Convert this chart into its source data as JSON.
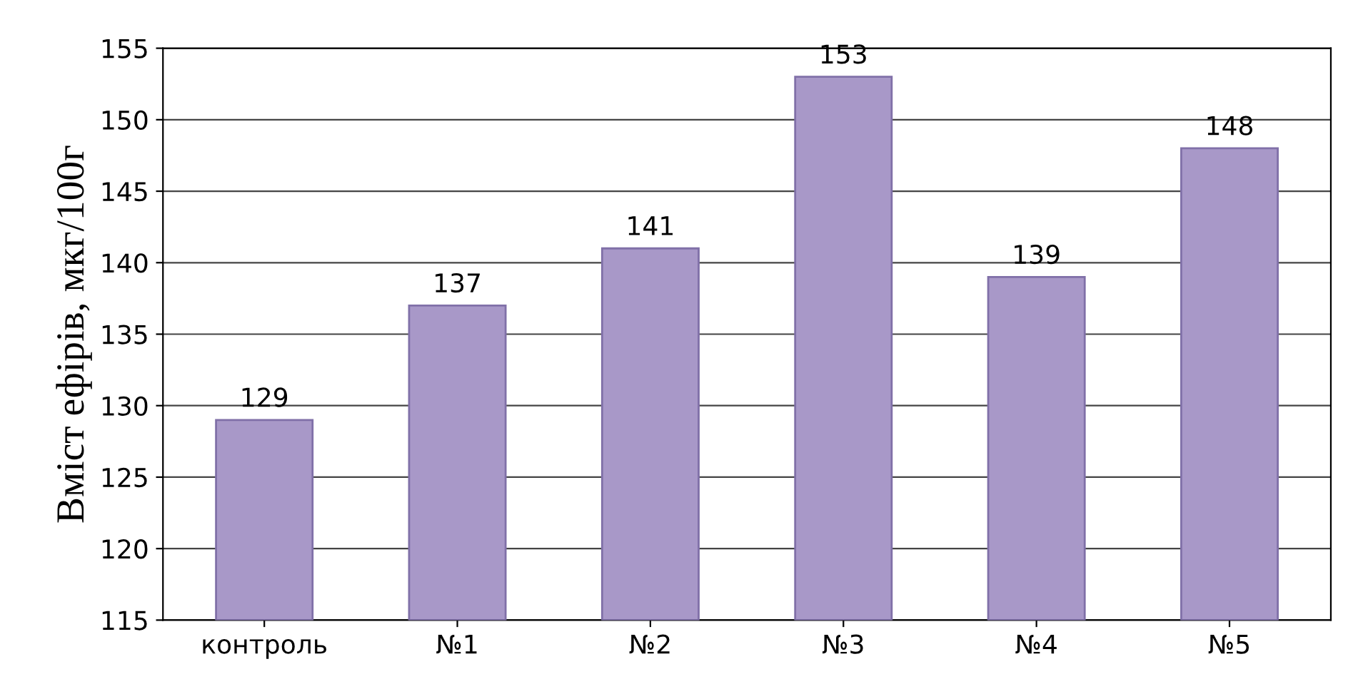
{
  "chart_data": {
    "type": "bar",
    "ylabel": "Вміст ефірів, мкг/100г",
    "categories": [
      "контроль",
      "№1",
      "№2",
      "№3",
      "№4",
      "№5"
    ],
    "values": [
      129,
      137,
      141,
      153,
      139,
      148
    ],
    "color": "#a898c8",
    "ylim": [
      115,
      155
    ],
    "yticks": [
      115,
      120,
      125,
      130,
      135,
      140,
      145,
      150,
      155
    ],
    "grid": "y",
    "data_labels": true,
    "legend": false
  }
}
